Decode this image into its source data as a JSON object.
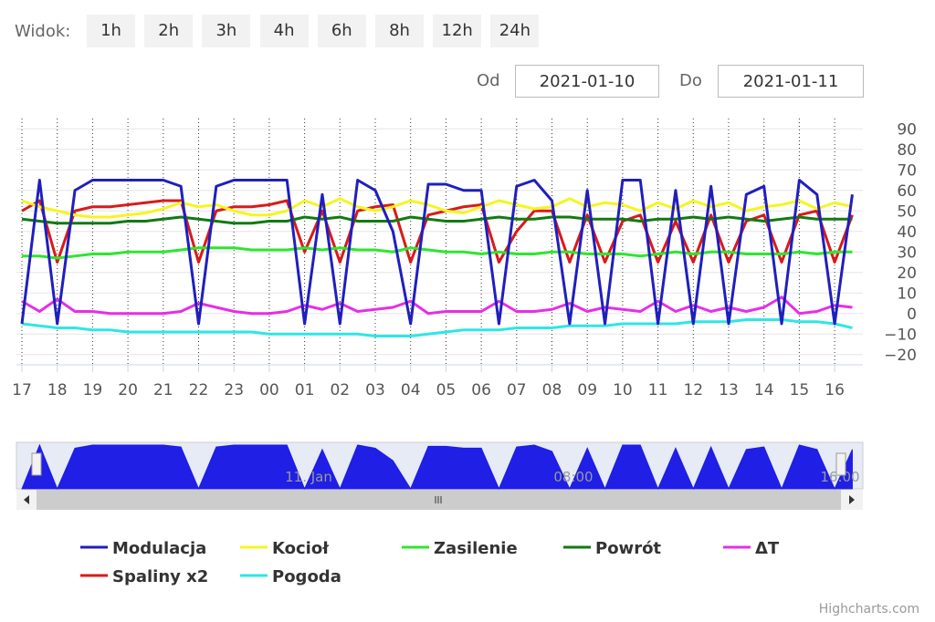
{
  "toolbar": {
    "label": "Widok:",
    "buttons": [
      "1h",
      "2h",
      "3h",
      "4h",
      "6h",
      "8h",
      "12h",
      "24h"
    ],
    "from_label": "Od",
    "from_value": "2021-01-10",
    "to_label": "Do",
    "to_value": "2021-01-11"
  },
  "chart_data": {
    "type": "line",
    "categories": [
      "17",
      null,
      "18",
      null,
      "19",
      null,
      "20",
      null,
      "21",
      null,
      "22",
      null,
      "23",
      null,
      "00",
      null,
      "01",
      null,
      "02",
      null,
      "03",
      null,
      "04",
      null,
      "05",
      null,
      "06",
      null,
      "07",
      null,
      "08",
      null,
      "09",
      null,
      "10",
      null,
      "11",
      null,
      "12",
      null,
      "13",
      null,
      "14",
      null,
      "15",
      null,
      "16",
      null
    ],
    "ylim": [
      -25,
      95
    ],
    "yticks": [
      {
        "value": -20,
        "label": "−20"
      },
      {
        "value": -10,
        "label": "−10"
      },
      0,
      10,
      20,
      30,
      40,
      50,
      60,
      70,
      80,
      90
    ],
    "grid": true,
    "series": [
      {
        "name": "Modulacja",
        "color": "#1f1fbf",
        "values": [
          -5,
          65,
          -5,
          60,
          65,
          65,
          65,
          65,
          65,
          62,
          -5,
          62,
          65,
          65,
          65,
          65,
          -5,
          58,
          -5,
          65,
          60,
          40,
          -5,
          63,
          63,
          60,
          60,
          -5,
          62,
          65,
          55,
          -5,
          60,
          -5,
          65,
          65,
          -5,
          60,
          -5,
          62,
          -5,
          58,
          62,
          -5,
          65,
          58,
          -5,
          58
        ]
      },
      {
        "name": "Kocioł",
        "color": "#f5f51f",
        "values": [
          55,
          52,
          50,
          48,
          47,
          47,
          48,
          49,
          51,
          54,
          52,
          53,
          50,
          48,
          48,
          50,
          55,
          52,
          56,
          52,
          50,
          52,
          55,
          53,
          50,
          49,
          52,
          55,
          53,
          51,
          52,
          56,
          52,
          54,
          53,
          50,
          54,
          51,
          55,
          52,
          54,
          50,
          52,
          53,
          55,
          51,
          54,
          52
        ]
      },
      {
        "name": "Zasilenie",
        "color": "#2ee62e",
        "values": [
          28,
          28,
          27,
          28,
          29,
          29,
          30,
          30,
          30,
          31,
          32,
          32,
          32,
          31,
          31,
          31,
          32,
          31,
          32,
          31,
          31,
          30,
          32,
          31,
          30,
          30,
          29,
          30,
          29,
          29,
          30,
          30,
          29,
          29,
          29,
          28,
          29,
          30,
          29,
          30,
          30,
          29,
          29,
          29,
          30,
          29,
          30,
          30
        ]
      },
      {
        "name": "Powrót",
        "color": "#117a11",
        "values": [
          46,
          45,
          44,
          44,
          44,
          44,
          45,
          45,
          46,
          47,
          46,
          45,
          44,
          44,
          45,
          45,
          47,
          46,
          47,
          45,
          45,
          45,
          47,
          46,
          45,
          45,
          46,
          47,
          46,
          46,
          47,
          47,
          46,
          46,
          46,
          45,
          46,
          46,
          47,
          46,
          47,
          46,
          45,
          46,
          47,
          46,
          46,
          46
        ]
      },
      {
        "name": "ΔT",
        "color": "#e62ee6",
        "values": [
          6,
          1,
          7,
          1,
          1,
          0,
          0,
          0,
          0,
          1,
          5,
          3,
          1,
          0,
          0,
          1,
          4,
          2,
          5,
          1,
          2,
          3,
          6,
          0,
          1,
          1,
          1,
          6,
          1,
          1,
          2,
          5,
          1,
          3,
          2,
          1,
          6,
          1,
          4,
          1,
          3,
          1,
          3,
          8,
          0,
          1,
          4,
          3
        ]
      },
      {
        "name": "Spaliny x2",
        "color": "#d91a1a",
        "values": [
          50,
          55,
          25,
          50,
          52,
          52,
          53,
          54,
          55,
          55,
          25,
          50,
          52,
          52,
          53,
          55,
          30,
          50,
          25,
          50,
          52,
          53,
          25,
          48,
          50,
          52,
          53,
          25,
          40,
          50,
          50,
          25,
          48,
          25,
          45,
          48,
          25,
          45,
          25,
          48,
          25,
          45,
          48,
          25,
          48,
          50,
          25,
          48
        ]
      },
      {
        "name": "Pogoda",
        "color": "#2ee6e6",
        "values": [
          -5,
          -6,
          -7,
          -7,
          -8,
          -8,
          -9,
          -9,
          -9,
          -9,
          -9,
          -9,
          -9,
          -9,
          -10,
          -10,
          -10,
          -10,
          -10,
          -10,
          -11,
          -11,
          -11,
          -10,
          -9,
          -8,
          -8,
          -8,
          -7,
          -7,
          -7,
          -6,
          -6,
          -6,
          -5,
          -5,
          -5,
          -5,
          -4,
          -4,
          -4,
          -3,
          -3,
          -3,
          -4,
          -4,
          -5,
          -7
        ]
      }
    ],
    "navigator": {
      "labels": [
        "11. Jan",
        "08:00",
        "16:00"
      ],
      "color": "#1f1fe6"
    }
  },
  "credits": "Highcharts.com"
}
